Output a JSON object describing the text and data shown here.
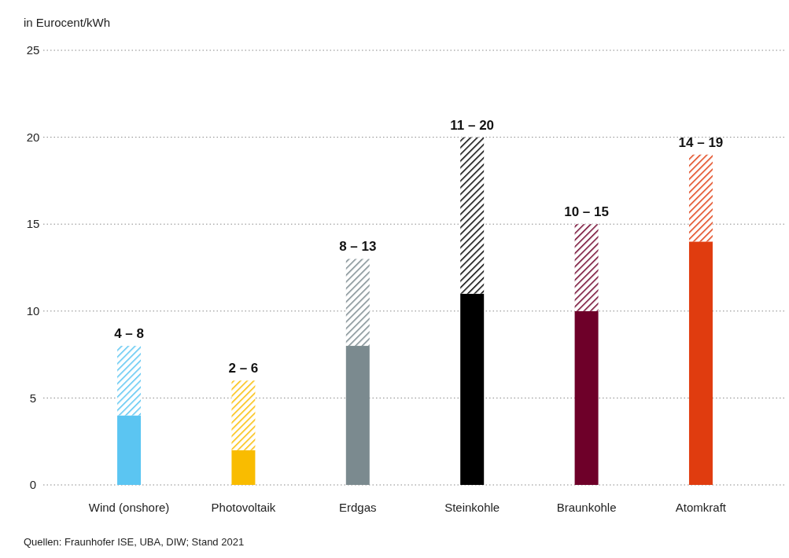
{
  "chart_data": {
    "type": "bar",
    "stacked": true,
    "ylabel": "in Eurocent/kWh",
    "categories": [
      "Wind (onshore)",
      "Photovoltaik",
      "Erdgas",
      "Steinkohle",
      "Braunkohle",
      "Atomkraft"
    ],
    "series": [
      {
        "colors": [
          "#5bc5f2",
          "#f9bc00",
          "#7b8a8f",
          "#000000",
          "#6e0029",
          "#e03c0f"
        ],
        "values": [
          4,
          2,
          8,
          11,
          10,
          14
        ]
      },
      {
        "colors": [
          "#5bc5f2",
          "#f9bc00",
          "#7b8a8f",
          "#000000",
          "#6e0029",
          "#e03c0f"
        ],
        "values": [
          4,
          4,
          5,
          9,
          5,
          5
        ]
      }
    ],
    "totals": [
      "4 – 8",
      "2 – 6",
      "8 – 13",
      "11 – 20",
      "10 – 15",
      "14 – 19"
    ],
    "ylim": [
      0,
      25
    ],
    "yticks": [
      0,
      5,
      10,
      15,
      20,
      25
    ],
    "grid": "y",
    "annotations": [
      "Quellen: Fraunhofer ISE, UBA, DIW; Stand 2021"
    ]
  }
}
